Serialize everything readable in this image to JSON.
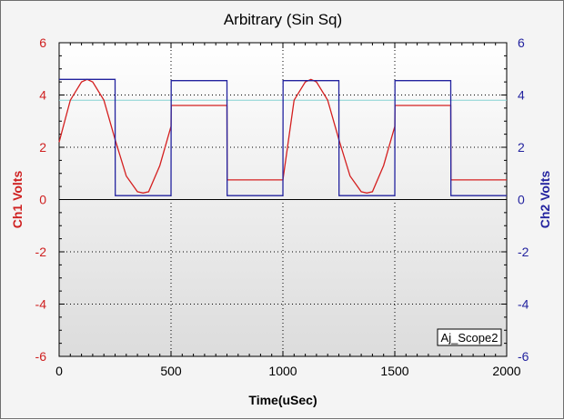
{
  "chart_data": {
    "type": "line",
    "title": "Arbitrary (Sin Sq)",
    "xlabel": "Time(uSec)",
    "ylabel_left": "Ch1 Volts",
    "ylabel_right": "Ch2 Volts",
    "xlim": [
      0,
      2000
    ],
    "ylim_left": [
      -6,
      6
    ],
    "ylim_right": [
      -6,
      6
    ],
    "x_ticks": [
      0,
      500,
      1000,
      1500,
      2000
    ],
    "y_ticks_left": [
      -6,
      -4,
      -2,
      0,
      2,
      4,
      6
    ],
    "y_ticks_right": [
      -6,
      -4,
      -2,
      0,
      2,
      4,
      6
    ],
    "grid": true,
    "legend_box_text": "Aj_Scope2",
    "legend_position": "bottom-right",
    "reference_line_value": 3.8,
    "colors": {
      "ch1": "#d42020",
      "ch2": "#23239f",
      "left_axis": "#cf2020",
      "right_axis": "#23239f",
      "reference": "#86d2d2",
      "plot_background": "#dcdcdc",
      "plot_background_light": "#ffffff"
    },
    "series": [
      {
        "name": "Ch1 Volts",
        "axis": "left",
        "x": [
          0,
          50,
          100,
          125,
          150,
          200,
          250,
          300,
          350,
          375,
          400,
          450,
          500,
          501,
          750,
          751,
          1000,
          1050,
          1100,
          1125,
          1150,
          1200,
          1250,
          1300,
          1350,
          1375,
          1400,
          1450,
          1500,
          1501,
          1750,
          1751,
          2000
        ],
        "y": [
          2.2,
          3.8,
          4.5,
          4.6,
          4.5,
          3.8,
          2.3,
          0.9,
          0.3,
          0.25,
          0.3,
          1.3,
          2.8,
          3.6,
          3.6,
          0.75,
          0.75,
          3.8,
          4.5,
          4.6,
          4.5,
          3.8,
          2.3,
          0.9,
          0.3,
          0.25,
          0.3,
          1.3,
          2.8,
          3.6,
          3.6,
          0.75,
          0.75
        ]
      },
      {
        "name": "Ch2 Volts",
        "axis": "right",
        "x": [
          0,
          250,
          251,
          500,
          501,
          750,
          751,
          1000,
          1001,
          1250,
          1251,
          1500,
          1501,
          1750,
          1751,
          2000
        ],
        "y": [
          4.6,
          4.6,
          0.15,
          0.15,
          4.55,
          4.55,
          0.15,
          0.15,
          4.55,
          4.55,
          0.15,
          0.15,
          4.55,
          4.55,
          0.15,
          0.15
        ]
      }
    ]
  }
}
